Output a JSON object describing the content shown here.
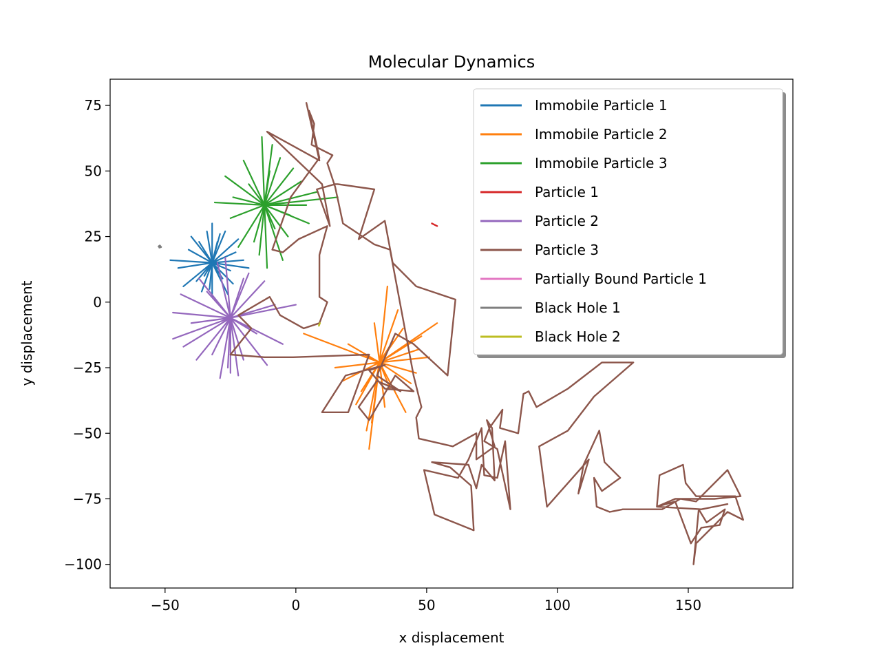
{
  "chart_data": {
    "type": "line",
    "title": "Molecular Dynamics",
    "xlabel": "x displacement",
    "ylabel": "y displacement",
    "xlim": [
      -71,
      190
    ],
    "ylim": [
      -109,
      85
    ],
    "xticks": [
      -50,
      0,
      50,
      100,
      150
    ],
    "yticks": [
      75,
      50,
      25,
      0,
      -25,
      -50,
      -75,
      -100
    ],
    "xtick_labels": [
      "−50",
      "0",
      "50",
      "100",
      "150"
    ],
    "ytick_labels": [
      "75",
      "50",
      "25",
      "0",
      "−25",
      "−50",
      "−75",
      "−100"
    ],
    "grid": false,
    "legend_position": "top-right",
    "series": [
      {
        "name": "Immobile Particle 1",
        "color": "#1f77b4",
        "style": "burst",
        "center": [
          -32,
          15
        ],
        "rays": [
          [
            -48,
            16
          ],
          [
            -20,
            16
          ],
          [
            -32,
            30
          ],
          [
            -32,
            2
          ],
          [
            -22,
            24
          ],
          [
            -43,
            6
          ],
          [
            -24,
            7
          ],
          [
            -40,
            25
          ],
          [
            -37,
            23
          ],
          [
            -27,
            27
          ],
          [
            -36,
            4
          ],
          [
            -30,
            23
          ],
          [
            -45,
            13
          ],
          [
            -18,
            13
          ],
          [
            -28,
            9
          ],
          [
            -34,
            27
          ],
          [
            -26,
            3
          ],
          [
            -41,
            20
          ],
          [
            -23,
            19
          ],
          [
            -35,
            10
          ],
          [
            -29,
            26
          ],
          [
            -38,
            8
          ],
          [
            -25,
            12
          ],
          [
            -33,
            5
          ]
        ]
      },
      {
        "name": "Immobile Particle 2",
        "color": "#ff7f0e",
        "style": "burst",
        "center": [
          32,
          -23
        ],
        "rays": [
          [
            3,
            -12
          ],
          [
            54,
            -8
          ],
          [
            35,
            6
          ],
          [
            28,
            -56
          ],
          [
            46,
            -27
          ],
          [
            42,
            -42
          ],
          [
            15,
            -25
          ],
          [
            27,
            -49
          ],
          [
            51,
            -21
          ],
          [
            20,
            -16
          ],
          [
            37,
            -15
          ],
          [
            29,
            -46
          ],
          [
            48,
            -13
          ],
          [
            25,
            -34
          ],
          [
            44,
            -31
          ],
          [
            18,
            -30
          ],
          [
            39,
            -3
          ],
          [
            34,
            -40
          ],
          [
            23,
            -39
          ],
          [
            47,
            -18
          ],
          [
            30,
            -8
          ],
          [
            36,
            -33
          ],
          [
            41,
            -10
          ],
          [
            26,
            -20
          ]
        ]
      },
      {
        "name": "Immobile Particle 3",
        "color": "#2ca02c",
        "style": "burst",
        "center": [
          -12,
          37
        ],
        "rays": [
          [
            -13,
            63
          ],
          [
            -31,
            38
          ],
          [
            16,
            40
          ],
          [
            -5,
            16
          ],
          [
            -9,
            60
          ],
          [
            -11,
            13
          ],
          [
            -22,
            21
          ],
          [
            8,
            42
          ],
          [
            -27,
            48
          ],
          [
            -1,
            51
          ],
          [
            -16,
            23
          ],
          [
            5,
            30
          ],
          [
            -20,
            54
          ],
          [
            -3,
            25
          ],
          [
            -25,
            32
          ],
          [
            2,
            46
          ],
          [
            -8,
            28
          ],
          [
            -18,
            45
          ],
          [
            -6,
            55
          ],
          [
            -14,
            18
          ],
          [
            4,
            37
          ],
          [
            -24,
            40
          ],
          [
            -2,
            33
          ],
          [
            -10,
            50
          ]
        ]
      },
      {
        "name": "Particle 1",
        "color": "#d62728",
        "style": "path",
        "points": [
          [
            52,
            30
          ],
          [
            53,
            29.5
          ],
          [
            54,
            29
          ]
        ]
      },
      {
        "name": "Particle 2",
        "color": "#9467bd",
        "style": "burst",
        "center": [
          -25,
          -6
        ],
        "rays": [
          [
            -47,
            -4
          ],
          [
            0,
            -1
          ],
          [
            -27,
            17
          ],
          [
            -25,
            -27
          ],
          [
            -29,
            -29
          ],
          [
            -20,
            -22
          ],
          [
            -11,
            -24
          ],
          [
            -37,
            9
          ],
          [
            -43,
            -17
          ],
          [
            -5,
            -16
          ],
          [
            -32,
            -20
          ],
          [
            -18,
            11
          ],
          [
            -47,
            -14
          ],
          [
            -8,
            -1
          ],
          [
            -22,
            -28
          ],
          [
            -34,
            4
          ],
          [
            -40,
            -8
          ],
          [
            -15,
            -12
          ],
          [
            -30,
            15
          ],
          [
            -12,
            8
          ],
          [
            -38,
            -22
          ],
          [
            -26,
            -25
          ],
          [
            -20,
            9
          ],
          [
            -44,
            3
          ]
        ]
      },
      {
        "name": "Particle 3",
        "color": "#8c564b",
        "style": "path",
        "points": [
          [
            4,
            76
          ],
          [
            9,
            54
          ],
          [
            -11,
            65
          ],
          [
            10,
            45
          ],
          [
            13,
            29
          ],
          [
            8,
            43
          ],
          [
            15,
            45
          ],
          [
            16,
            45
          ],
          [
            30,
            43
          ],
          [
            24,
            24
          ],
          [
            34,
            31
          ],
          [
            37,
            15
          ],
          [
            46,
            6
          ],
          [
            61,
            1
          ],
          [
            58,
            -28
          ],
          [
            45,
            -16
          ],
          [
            38,
            -12
          ],
          [
            31,
            -28
          ],
          [
            40,
            -34
          ],
          [
            31,
            -30
          ],
          [
            24,
            -40
          ],
          [
            28,
            -45
          ],
          [
            38,
            -28
          ],
          [
            45,
            -34
          ],
          [
            34,
            -33
          ],
          [
            28,
            -26
          ],
          [
            34,
            -24
          ],
          [
            19,
            -28
          ],
          [
            10,
            -42
          ],
          [
            20,
            -42
          ],
          [
            28,
            -20
          ],
          [
            -1,
            -21
          ],
          [
            -12,
            -21
          ],
          [
            -25,
            -20
          ],
          [
            -17,
            -10
          ],
          [
            -22,
            -5
          ],
          [
            -10,
            2
          ],
          [
            -6,
            -5
          ],
          [
            3,
            -10
          ],
          [
            9,
            -8
          ],
          [
            12,
            0
          ],
          [
            9,
            2
          ],
          [
            9,
            18
          ],
          [
            12,
            29
          ],
          [
            1,
            24
          ],
          [
            -5,
            19
          ],
          [
            -9,
            20
          ],
          [
            -2,
            40
          ],
          [
            9,
            55
          ],
          [
            5,
            73
          ],
          [
            7,
            68
          ],
          [
            6,
            60
          ],
          [
            14,
            56
          ],
          [
            12,
            53
          ],
          [
            15,
            44
          ],
          [
            18,
            30
          ],
          [
            30,
            22
          ],
          [
            36,
            20
          ],
          [
            45,
            -28
          ],
          [
            48,
            -40
          ],
          [
            46,
            -44
          ],
          [
            47,
            -52
          ],
          [
            60,
            -55
          ],
          [
            69,
            -50
          ],
          [
            69,
            -60
          ],
          [
            76,
            -55
          ],
          [
            73,
            -45
          ],
          [
            75,
            -48
          ],
          [
            76,
            -68
          ],
          [
            71,
            -62
          ],
          [
            69,
            -71
          ],
          [
            66,
            -62
          ],
          [
            52,
            -61
          ],
          [
            59,
            -63
          ],
          [
            67,
            -70
          ],
          [
            68,
            -87
          ],
          [
            53,
            -81
          ],
          [
            49,
            -64
          ],
          [
            62,
            -67
          ],
          [
            66,
            -60
          ],
          [
            71,
            -48
          ],
          [
            72,
            -66
          ],
          [
            77,
            -67
          ],
          [
            80,
            -53
          ],
          [
            82,
            -79
          ],
          [
            77,
            -56
          ],
          [
            72,
            -53
          ],
          [
            74,
            -48
          ],
          [
            79,
            -41
          ],
          [
            78,
            -48
          ],
          [
            85,
            -50
          ],
          [
            87,
            -35
          ],
          [
            89,
            -34
          ],
          [
            92,
            -40
          ],
          [
            104,
            -33
          ],
          [
            117,
            -23
          ],
          [
            129,
            -23
          ],
          [
            114,
            -36
          ],
          [
            104,
            -49
          ],
          [
            93,
            -55
          ],
          [
            96,
            -78
          ],
          [
            112,
            -60
          ],
          [
            108,
            -73
          ],
          [
            110,
            -62
          ],
          [
            116,
            -49
          ],
          [
            118,
            -61
          ],
          [
            124,
            -67
          ],
          [
            117,
            -72
          ],
          [
            114,
            -67
          ],
          [
            115,
            -78
          ],
          [
            120,
            -80
          ],
          [
            125,
            -79
          ],
          [
            140,
            -79
          ],
          [
            147,
            -75
          ],
          [
            153,
            -76
          ],
          [
            165,
            -64
          ],
          [
            170,
            -74
          ],
          [
            160,
            -75
          ],
          [
            145,
            -75
          ],
          [
            138,
            -78
          ],
          [
            145,
            -76
          ],
          [
            151,
            -92
          ],
          [
            155,
            -86
          ],
          [
            162,
            -85
          ],
          [
            164,
            -79
          ],
          [
            157,
            -84
          ],
          [
            154,
            -79
          ],
          [
            152,
            -100
          ],
          [
            153,
            -92
          ],
          [
            160,
            -85
          ],
          [
            165,
            -80
          ],
          [
            171,
            -83
          ],
          [
            168,
            -74
          ],
          [
            153,
            -74
          ],
          [
            149,
            -69
          ],
          [
            148,
            -62
          ],
          [
            139,
            -66
          ],
          [
            138,
            -78
          ],
          [
            155,
            -79
          ],
          [
            165,
            -77
          ]
        ]
      },
      {
        "name": "Partially Bound Particle 1",
        "color": "#e377c2",
        "style": "path",
        "points": []
      },
      {
        "name": "Black Hole 1",
        "color": "#7f7f7f",
        "style": "path",
        "points": [
          [
            -52.5,
            21.2
          ],
          [
            -52,
            21.6
          ],
          [
            -51.5,
            21.0
          ],
          [
            -52.2,
            20.8
          ]
        ]
      },
      {
        "name": "Black Hole 2",
        "color": "#bcbd22",
        "style": "path",
        "points": [
          [
            8.8,
            -9
          ],
          [
            9.2,
            -8
          ],
          [
            8.9,
            -8.6
          ]
        ]
      }
    ]
  }
}
